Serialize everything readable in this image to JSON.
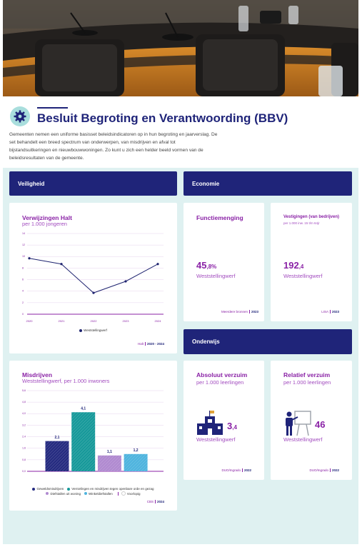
{
  "header": {
    "title": "Besluit Begroting en Verantwoording (BBV)",
    "intro": "Gemeenten nemen een uniforme basisset beleidsindicatoren op in hun begroting en jaarverslag. De set behandelt een breed spectrum van onderwerpen, van misdrijven en afval tot bijstandsuitkeringen en nieuwbouwwoningen. Zo kunt u zich een helder beeld vormen van de beleidsresultaten van de gemeente."
  },
  "sections": [
    {
      "title": "Veiligheid"
    },
    {
      "title": "Economie"
    },
    {
      "title": "Onderwijs"
    }
  ],
  "kpis": [
    {
      "title": "Functiemenging",
      "value": "45",
      "value_suffix": ",8%",
      "area": "Weststellingwerf",
      "source": "Meerdere bronnen",
      "year": "2023"
    },
    {
      "title": "Vestigingen (van bedrijven)",
      "subtitle": "per 1.000 inw. 15 t/m 64jr",
      "value": "192",
      "value_suffix": ",4",
      "area": "Weststellingwerf",
      "source": "LISA",
      "year": "2023"
    },
    {
      "title": "Absoluut verzuim",
      "subtitle": "per 1.000 leerlingen",
      "value": "3",
      "value_suffix": ",4",
      "area": "Weststellingwerf",
      "source": "DUO/Ingrado",
      "year": "2022"
    },
    {
      "title": "Relatief verzuim",
      "subtitle": "per 1.000 leerlingen",
      "value": "46",
      "area": "Weststellingwerf",
      "source": "DUO/Ingrado",
      "year": "2022"
    }
  ],
  "chart_data": [
    {
      "type": "line",
      "title": "Verwijzingen Halt",
      "subtitle": "per 1.000 jongeren",
      "categories": [
        "2020",
        "2021",
        "2022",
        "2023",
        "2024"
      ],
      "series": [
        {
          "name": "Weststellingwerf",
          "color": "#1f2470",
          "values": [
            9.7,
            8.7,
            3.7,
            5.7,
            8.7
          ]
        }
      ],
      "ylim": [
        0,
        14
      ],
      "yticks": [
        0,
        2,
        4,
        6,
        8,
        10,
        12,
        14
      ],
      "grid": true,
      "source": "Halt",
      "year": "2020 - 2024"
    },
    {
      "type": "bar",
      "title": "Misdrijven",
      "subtitle": "Weststellingwerf, per 1.000 inwoners",
      "categories": [
        "Geweldsmisdrijven",
        "Vernielingen en misdrijven tegen openbare orde en gezag",
        "Diefstallen uit woning",
        "Winkeldiefstallen"
      ],
      "values": [
        2.1,
        4.1,
        1.1,
        1.2
      ],
      "value_labels": [
        "2,1",
        "4,1",
        "1,1",
        "1,2"
      ],
      "colors": [
        "#252b80",
        "#17999a",
        "#b08ad0",
        "#4fb4de"
      ],
      "provisional_label": "Voorlopig",
      "ylim": [
        0,
        5.6
      ],
      "yticks": [
        {
          "value": 0,
          "label": "0,0"
        },
        {
          "value": 0.8,
          "label": "0,8"
        },
        {
          "value": 1.6,
          "label": "1,6"
        },
        {
          "value": 2.4,
          "label": "2,4"
        },
        {
          "value": 3.2,
          "label": "3,2"
        },
        {
          "value": 4,
          "label": "4,0"
        },
        {
          "value": 4.8,
          "label": "4,8"
        },
        {
          "value": 5.6,
          "label": "5,6"
        }
      ],
      "grid": true,
      "source": "CBS",
      "year": "2024"
    }
  ]
}
